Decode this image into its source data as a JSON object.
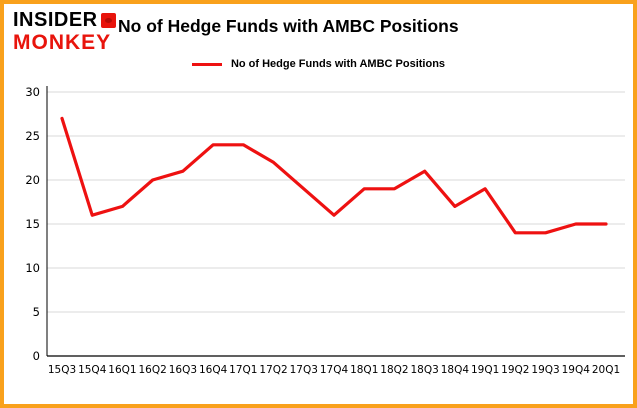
{
  "logo": {
    "line1": "INSIDER",
    "line2": "MONKEY"
  },
  "header": {
    "title": "No of Hedge Funds with AMBC Positions"
  },
  "legend": {
    "label": "No of Hedge Funds with AMBC Positions"
  },
  "colors": {
    "border": "#f9a11c",
    "line": "#ee1111",
    "grid": "#d9d9d9",
    "axis": "#000000",
    "logo_red": "#e8140c",
    "text": "#000000"
  },
  "chart_data": {
    "type": "line",
    "title": "No of Hedge Funds with AMBC Positions",
    "categories": [
      "15Q3",
      "15Q4",
      "16Q1",
      "16Q2",
      "16Q3",
      "16Q4",
      "17Q1",
      "17Q2",
      "17Q3",
      "17Q4",
      "18Q1",
      "18Q2",
      "18Q3",
      "18Q4",
      "19Q1",
      "19Q2",
      "19Q3",
      "19Q4",
      "20Q1"
    ],
    "values": [
      27,
      16,
      17,
      20,
      21,
      24,
      24,
      22,
      19,
      16,
      19,
      19,
      21,
      17,
      19,
      14,
      14,
      15,
      15
    ],
    "xlabel": "",
    "ylabel": "",
    "ylim": [
      0,
      30
    ],
    "yticks": [
      0,
      5,
      10,
      15,
      20,
      25,
      30
    ],
    "grid": "horizontal",
    "legend_position": "top-center",
    "series": [
      {
        "name": "No of Hedge Funds with AMBC Positions",
        "color": "#ee1111"
      }
    ]
  }
}
